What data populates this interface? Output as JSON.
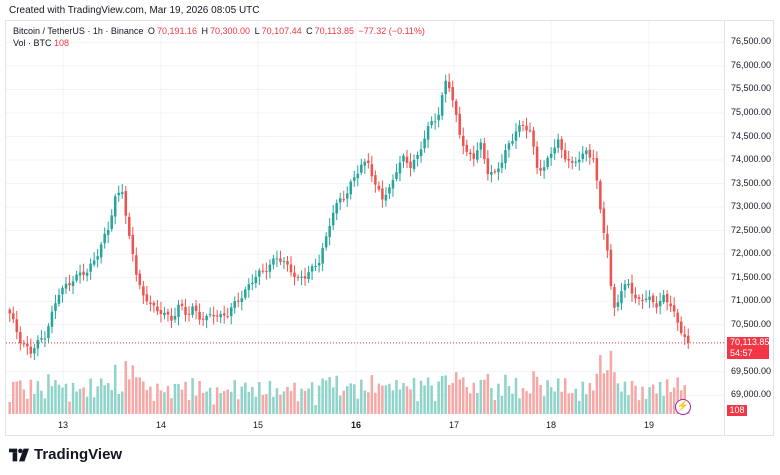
{
  "header": {
    "created_text": "Created with TradingView.com, Mar 19, 2026 08:05 UTC"
  },
  "legend": {
    "symbol": "Bitcoin / TetherUS · 1h · Binance",
    "o_label": "O",
    "o_value": "70,191.16",
    "h_label": "H",
    "h_value": "70,300.00",
    "l_label": "L",
    "l_value": "70,107.44",
    "c_label": "C",
    "c_value": "70,113.85",
    "change": "−77.32 (−0.11%)",
    "vol_label": "Vol · BTC",
    "vol_value": "108"
  },
  "last_price": {
    "price": "70,113.85",
    "countdown": "54:57",
    "volume": "108"
  },
  "logo": {
    "text": "TradingView"
  },
  "colors": {
    "up": "#26a69a",
    "down": "#ef5350",
    "up_volume": "#8fd3c9",
    "down_volume": "#f5a8a6",
    "accent": "#f23645"
  },
  "icons": [
    "bolt-icon",
    "tradingview-logo-icon"
  ],
  "chart_data": {
    "type": "candlestick",
    "y_tick_labels": [
      "76,500.00",
      "76,000.00",
      "75,500.00",
      "75,000.00",
      "74,500.00",
      "74,000.00",
      "73,500.00",
      "73,000.00",
      "72,500.00",
      "72,000.00",
      "71,500.00",
      "71,000.00",
      "70,500.00",
      "69,500.00",
      "69,000.00"
    ],
    "ylim": [
      68900,
      76700
    ],
    "x_tick_labels": [
      "13",
      "14",
      "15",
      "16",
      "17",
      "18",
      "19"
    ],
    "x_tick_bold": "16",
    "close_anchors": [
      [
        0,
        70700
      ],
      [
        3,
        70200
      ],
      [
        6,
        69900
      ],
      [
        10,
        70300
      ],
      [
        14,
        71150
      ],
      [
        18,
        71500
      ],
      [
        22,
        71600
      ],
      [
        26,
        72200
      ],
      [
        28,
        72500
      ],
      [
        30,
        73200
      ],
      [
        32,
        73400
      ],
      [
        34,
        72300
      ],
      [
        36,
        71600
      ],
      [
        38,
        71100
      ],
      [
        40,
        71000
      ],
      [
        42,
        70700
      ],
      [
        44,
        70800
      ],
      [
        46,
        70600
      ],
      [
        48,
        70900
      ],
      [
        50,
        70700
      ],
      [
        52,
        70900
      ],
      [
        54,
        70650
      ],
      [
        56,
        70600
      ],
      [
        58,
        70750
      ],
      [
        60,
        70700
      ],
      [
        62,
        70700
      ],
      [
        66,
        71150
      ],
      [
        70,
        71500
      ],
      [
        74,
        71800
      ],
      [
        76,
        71900
      ],
      [
        78,
        71800
      ],
      [
        80,
        71700
      ],
      [
        82,
        71450
      ],
      [
        84,
        71500
      ],
      [
        86,
        71700
      ],
      [
        88,
        71900
      ],
      [
        90,
        72300
      ],
      [
        92,
        72900
      ],
      [
        94,
        73200
      ],
      [
        96,
        73300
      ],
      [
        98,
        73600
      ],
      [
        100,
        73900
      ],
      [
        102,
        74000
      ],
      [
        104,
        73400
      ],
      [
        106,
        73200
      ],
      [
        108,
        73400
      ],
      [
        110,
        73800
      ],
      [
        112,
        74000
      ],
      [
        114,
        73900
      ],
      [
        116,
        74100
      ],
      [
        118,
        74450
      ],
      [
        120,
        74800
      ],
      [
        122,
        75000
      ],
      [
        124,
        75700
      ],
      [
        125,
        75550
      ],
      [
        126,
        75200
      ],
      [
        128,
        74600
      ],
      [
        130,
        74150
      ],
      [
        132,
        74050
      ],
      [
        134,
        74300
      ],
      [
        136,
        73800
      ],
      [
        138,
        73700
      ],
      [
        140,
        73950
      ],
      [
        142,
        74350
      ],
      [
        144,
        74650
      ],
      [
        146,
        74700
      ],
      [
        148,
        74600
      ],
      [
        150,
        73900
      ],
      [
        152,
        73800
      ],
      [
        154,
        74150
      ],
      [
        156,
        74400
      ],
      [
        158,
        74100
      ],
      [
        160,
        73850
      ],
      [
        162,
        74050
      ],
      [
        164,
        74200
      ],
      [
        166,
        74050
      ],
      [
        168,
        72900
      ],
      [
        170,
        72100
      ],
      [
        171,
        71300
      ],
      [
        172,
        70900
      ],
      [
        174,
        71150
      ],
      [
        176,
        71400
      ],
      [
        178,
        71050
      ],
      [
        180,
        71050
      ],
      [
        182,
        71000
      ],
      [
        184,
        70950
      ],
      [
        186,
        71100
      ],
      [
        188,
        70900
      ],
      [
        190,
        70500
      ],
      [
        192,
        70300
      ],
      [
        193,
        70114
      ]
    ],
    "candle_count": 194,
    "last_volume": 108
  }
}
